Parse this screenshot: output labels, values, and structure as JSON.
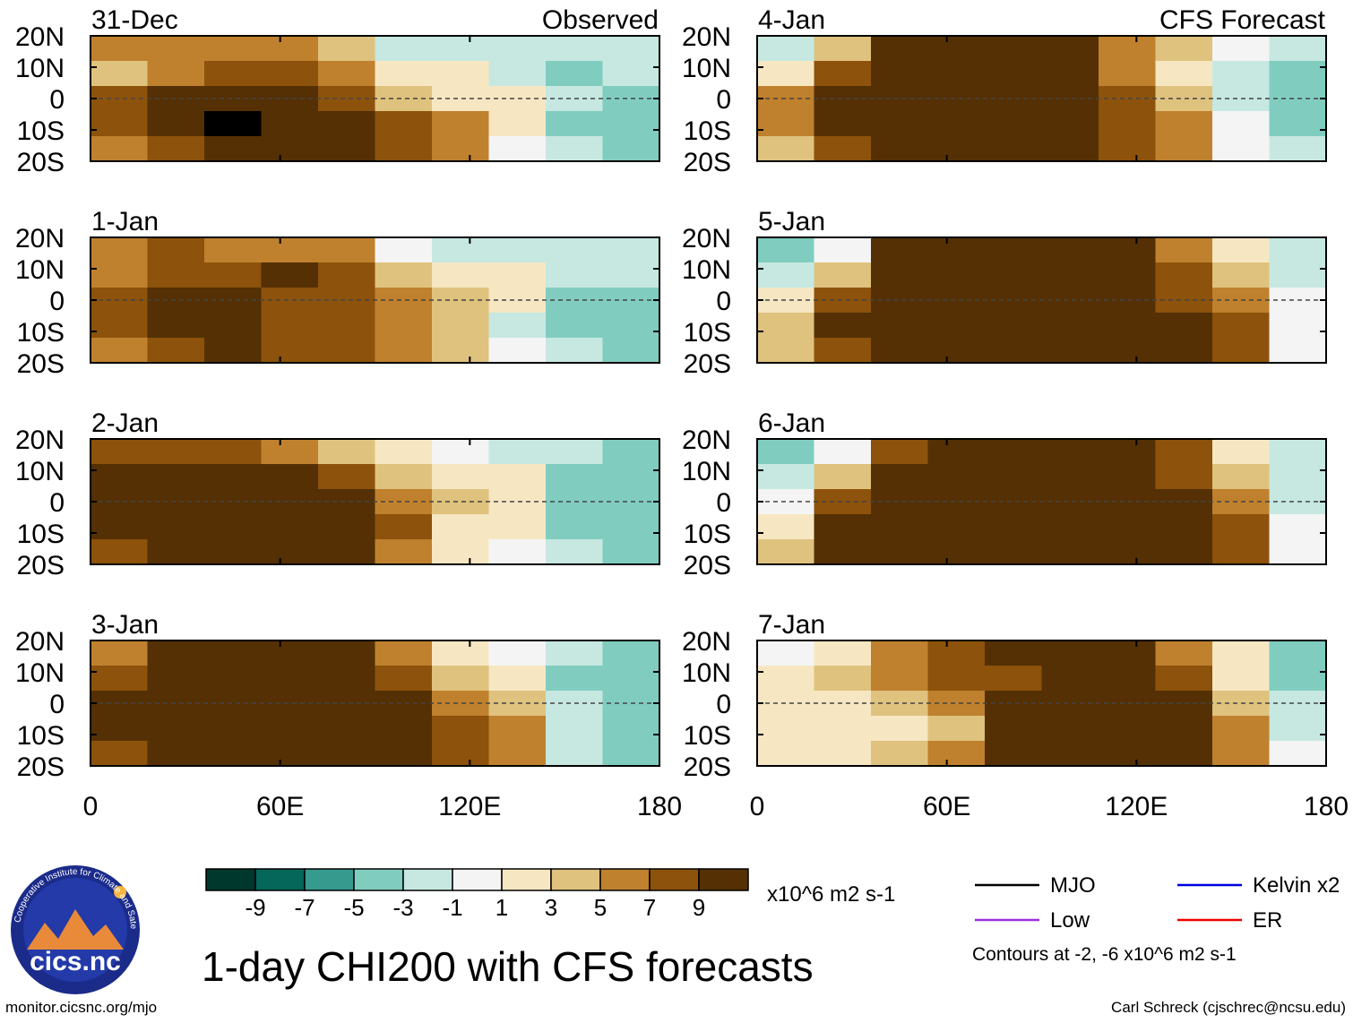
{
  "figure": {
    "title": "1-day CHI200 with CFS forecasts",
    "url": "monitor.cicsnc.org/mjo",
    "credit": "Carl Schreck (cjschrec@ncsu.edu)",
    "logo": {
      "name": "cics.nc",
      "ring_text": "Cooperative Institute for Climate and Satellites"
    },
    "colorbar": {
      "units": "x10^6 m2 s-1",
      "tick_labels": [
        "-9",
        "-7",
        "-5",
        "-3",
        "-1",
        "1",
        "3",
        "5",
        "7",
        "9"
      ],
      "colors": [
        "#00382d",
        "#05665a",
        "#369a8f",
        "#80cdc0",
        "#c6e8e1",
        "#f4f4f4",
        "#f6e7c2",
        "#dfc27e",
        "#bf812e",
        "#8d520b",
        "#543004"
      ]
    },
    "legend": {
      "items": [
        {
          "label": "MJO",
          "color": "#000000"
        },
        {
          "label": "Kelvin x2",
          "color": "#0000dd"
        },
        {
          "label": "Low",
          "color": "#9a30e0"
        },
        {
          "label": "ER",
          "color": "#ee0000"
        }
      ],
      "note": "Contours at -2, -6 x10^6 m2 s-1"
    }
  },
  "chart_data": [
    {
      "type": "heatmap",
      "panel": "31-Dec",
      "label": "Observed",
      "x_ticks": [
        "0",
        "60E",
        "120E",
        "180"
      ],
      "y_ticks": [
        "20N",
        "10N",
        "0",
        "10S",
        "20S"
      ],
      "xlim": [
        0,
        180
      ],
      "ylim": [
        -20,
        20
      ],
      "field": "CHI200 anomaly",
      "cells": [
        "5555411111",
        "4566533101",
        "6777643310",
        "6787765300",
        "5677765210"
      ]
    },
    {
      "type": "heatmap",
      "panel": "1-Jan",
      "label": "",
      "x_ticks": [
        "0",
        "60E",
        "120E",
        "180"
      ],
      "y_ticks": [
        "20N",
        "10N",
        "0",
        "10S",
        "20S"
      ],
      "xlim": [
        0,
        180
      ],
      "ylim": [
        -20,
        20
      ],
      "field": "CHI200 anomaly",
      "cells": [
        "5655521111",
        "5667643311",
        "6776654300",
        "6776654100",
        "5676654210"
      ]
    },
    {
      "type": "heatmap",
      "panel": "2-Jan",
      "label": "",
      "x_ticks": [
        "0",
        "60E",
        "120E",
        "180"
      ],
      "y_ticks": [
        "20N",
        "10N",
        "0",
        "10S",
        "20S"
      ],
      "xlim": [
        0,
        180
      ],
      "ylim": [
        -20,
        20
      ],
      "field": "CHI200 anomaly",
      "cells": [
        "6665432110",
        "7777643300",
        "7777754300",
        "7777763300",
        "6777753210"
      ]
    },
    {
      "type": "heatmap",
      "panel": "3-Jan",
      "label": "",
      "x_ticks": [
        "0",
        "60E",
        "120E",
        "180"
      ],
      "y_ticks": [
        "20N",
        "10N",
        "0",
        "10S",
        "20S"
      ],
      "xlim": [
        0,
        180
      ],
      "ylim": [
        -20,
        20
      ],
      "field": "CHI200 anomaly",
      "cells": [
        "5777753210",
        "6777764300",
        "7777775410",
        "7777776510",
        "6777776510"
      ]
    },
    {
      "type": "heatmap",
      "panel": "4-Jan",
      "label": "CFS Forecast",
      "x_ticks": [
        "0",
        "60E",
        "120E",
        "180"
      ],
      "y_ticks": [
        "20N",
        "10N",
        "0",
        "10S",
        "20S"
      ],
      "xlim": [
        0,
        180
      ],
      "ylim": [
        -20,
        20
      ],
      "field": "CHI200 anomaly",
      "cells": [
        "1477775421",
        "3677775310",
        "5777776410",
        "5777776520",
        "4677776521"
      ]
    },
    {
      "type": "heatmap",
      "panel": "5-Jan",
      "label": "",
      "x_ticks": [
        "0",
        "60E",
        "120E",
        "180"
      ],
      "y_ticks": [
        "20N",
        "10N",
        "0",
        "10S",
        "20S"
      ],
      "xlim": [
        0,
        180
      ],
      "ylim": [
        -20,
        20
      ],
      "field": "CHI200 anomaly",
      "cells": [
        "0277777531",
        "1477777641",
        "3677777652",
        "4777777762",
        "4677777762"
      ]
    },
    {
      "type": "heatmap",
      "panel": "6-Jan",
      "label": "",
      "x_ticks": [
        "0",
        "60E",
        "120E",
        "180"
      ],
      "y_ticks": [
        "20N",
        "10N",
        "0",
        "10S",
        "20S"
      ],
      "xlim": [
        0,
        180
      ],
      "ylim": [
        -20,
        20
      ],
      "field": "CHI200 anomaly",
      "cells": [
        "0267777631",
        "1477777641",
        "2677777751",
        "3777777762",
        "4777777762"
      ]
    },
    {
      "type": "heatmap",
      "panel": "7-Jan",
      "label": "",
      "x_ticks": [
        "0",
        "60E",
        "120E",
        "180"
      ],
      "y_ticks": [
        "20N",
        "10N",
        "0",
        "10S",
        "20S"
      ],
      "xlim": [
        0,
        180
      ],
      "ylim": [
        -20,
        20
      ],
      "field": "CHI200 anomaly",
      "cells": [
        "2356777530",
        "3456677630",
        "3345777741",
        "3334777751",
        "3345777752"
      ]
    }
  ]
}
